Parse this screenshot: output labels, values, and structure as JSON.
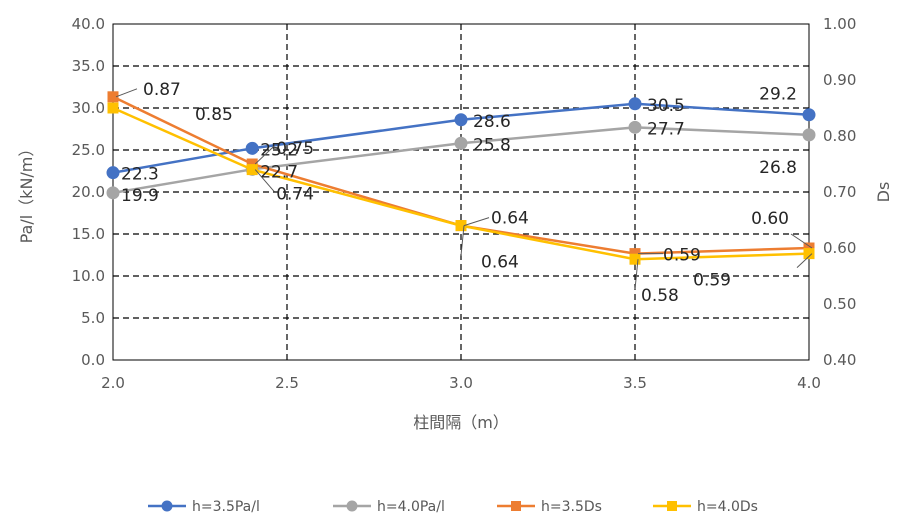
{
  "chart_data": {
    "type": "line",
    "title": "",
    "xlabel": "柱間隔（m）",
    "ylabel": "Pa/l（kN/m）",
    "y2label": "Ds",
    "x": [
      2.0,
      2.4,
      3.0,
      3.5,
      4.0
    ],
    "xticks": [
      "2.0",
      "2.5",
      "3.0",
      "3.5",
      "4.0"
    ],
    "xlim": [
      2.0,
      4.0
    ],
    "ylim": [
      0,
      40
    ],
    "yticks": [
      "0.0",
      "5.0",
      "10.0",
      "15.0",
      "20.0",
      "25.0",
      "30.0",
      "35.0",
      "40.0"
    ],
    "y2lim": [
      0.4,
      1.0
    ],
    "y2ticks": [
      "0.40",
      "0.50",
      "0.60",
      "0.70",
      "0.80",
      "0.90",
      "1.00"
    ],
    "grid": "dashed",
    "legend_position": "bottom",
    "series": [
      {
        "name": "h=3.5Pa/l",
        "axis": "left",
        "color": "#4472C4",
        "marker": "circle",
        "values": [
          22.3,
          25.2,
          28.6,
          30.5,
          29.2
        ],
        "labels": [
          "22.3",
          "25.2",
          "28.6",
          "30.5",
          "29.2"
        ]
      },
      {
        "name": "h=4.0Pa/l",
        "axis": "left",
        "color": "#A5A5A5",
        "marker": "circle",
        "values": [
          19.9,
          22.7,
          25.8,
          27.7,
          26.8
        ],
        "labels": [
          "19.9",
          "22.7",
          "25.8",
          "27.7",
          "26.8"
        ]
      },
      {
        "name": "h=3.5Ds",
        "axis": "right",
        "color": "#ED7D31",
        "marker": "square",
        "values": [
          0.87,
          0.75,
          0.64,
          0.59,
          0.6
        ],
        "labels": [
          "0.87",
          "0.75",
          "0.64",
          "0.59",
          "0.60"
        ]
      },
      {
        "name": "h=4.0Ds",
        "axis": "right",
        "color": "#FFC000",
        "marker": "square",
        "values": [
          0.85,
          0.74,
          0.64,
          0.58,
          0.59
        ],
        "labels": [
          "0.85",
          "0.74",
          "0.64",
          "0.58",
          "0.59"
        ]
      }
    ]
  }
}
